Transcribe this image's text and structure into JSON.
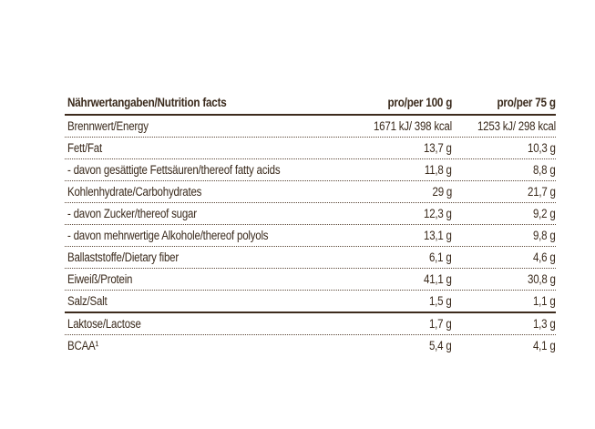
{
  "table": {
    "header": {
      "label": "Nährwertangaben/Nutrition facts",
      "per100": "pro/per 100 g",
      "per75": "pro/per 75 g"
    },
    "rows": [
      {
        "label": "Brennwert/Energy",
        "per100": "1671 kJ/ 398 kcal",
        "per75": "1253 kJ/ 298 kcal"
      },
      {
        "label": "Fett/Fat",
        "per100": "13,7 g",
        "per75": "10,3 g"
      },
      {
        "label": "- davon gesättigte Fettsäuren/thereof fatty acids",
        "per100": "11,8 g",
        "per75": "8,8 g"
      },
      {
        "label": "Kohlenhydrate/Carbohydrates",
        "per100": "29 g",
        "per75": "21,7 g"
      },
      {
        "label": "- davon Zucker/thereof sugar",
        "per100": "12,3 g",
        "per75": "9,2 g"
      },
      {
        "label": "- davon mehrwertige Alkohole/thereof polyols",
        "per100": "13,1 g",
        "per75": "9,8 g"
      },
      {
        "label": "Ballaststoffe/Dietary fiber",
        "per100": "6,1 g",
        "per75": "4,6 g"
      },
      {
        "label": "Eiweiß/Protein",
        "per100": "41,1 g",
        "per75": "30,8 g"
      },
      {
        "label": "Salz/Salt",
        "per100": "1,5 g",
        "per75": "1,1 g"
      },
      {
        "label": "Laktose/Lactose",
        "per100": "1,7 g",
        "per75": "1,3 g"
      },
      {
        "label": "BCAA¹",
        "per100": "5,4 g",
        "per75": "4,1 g"
      }
    ]
  },
  "colors": {
    "text": "#3a2a1c",
    "rule": "#3d2b1d"
  }
}
